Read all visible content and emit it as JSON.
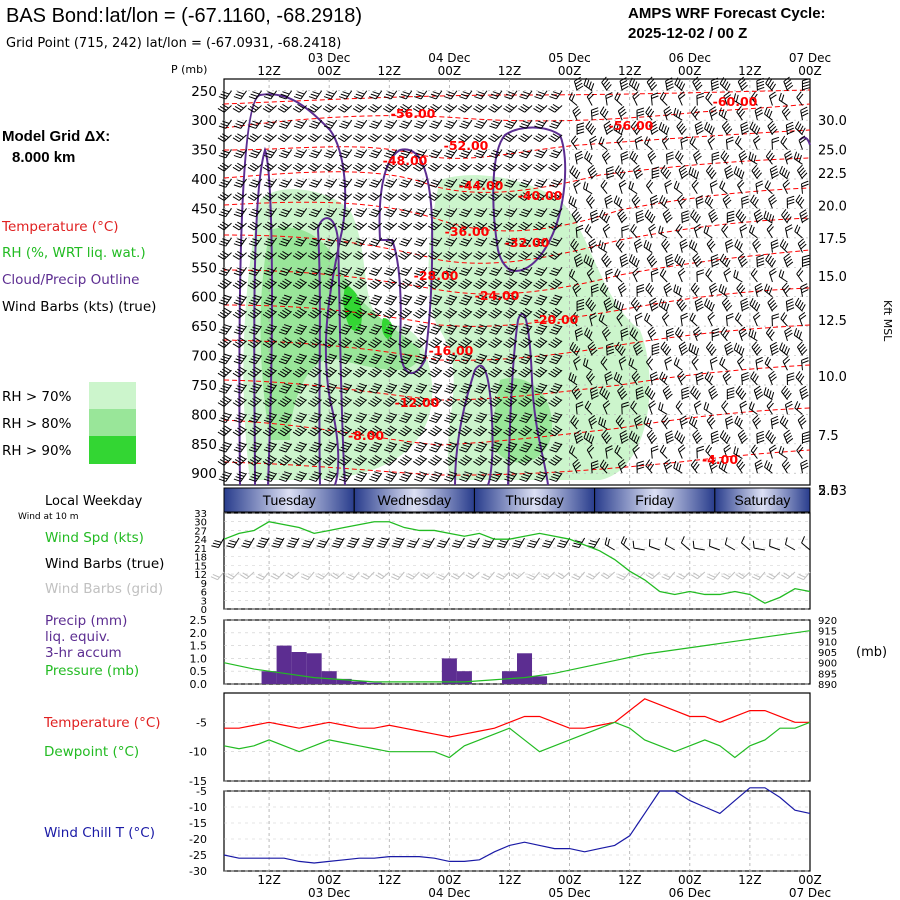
{
  "header": {
    "station": "BAS Bond:",
    "latlon": "lat/lon = (-67.1160, -68.2918)",
    "grid_point": "Grid Point (715, 242) lat/lon = (-67.0931, -68.2418)",
    "cycle_title": "AMPS WRF Forecast Cycle:",
    "cycle_time": "2025-12-02 / 00  Z"
  },
  "legend": {
    "model_grid": "Model Grid ΔX:",
    "grid_km": "8.000 km",
    "temperature": "Temperature (°C)",
    "rh": "RH (%, WRT liq. wat.)",
    "cloud": "Cloud/Precip Outline",
    "wind": "Wind Barbs (kts) (true)",
    "rh70": "RH > 70%",
    "rh80": "RH > 80%",
    "rh90": "RH > 90%"
  },
  "colors": {
    "temp": "#ff0000",
    "rh70": "#ccf5cc",
    "rh80": "#99e699",
    "rh90": "#33d633",
    "cloud": "#5c2d91",
    "wind_spd": "#22bb22",
    "precip": "#5c2d91",
    "pressure": "#22bb22",
    "dewpoint": "#22bb22",
    "windchill": "#1a1aa6",
    "grid_barb": "#c0c0c0",
    "day_dark": "#283c8c",
    "day_light": "#dce0f4"
  },
  "time_axis": {
    "hours": [
      "12Z",
      "00Z",
      "12Z",
      "00Z",
      "12Z",
      "00Z",
      "12Z",
      "00Z",
      "12Z",
      "00Z"
    ],
    "hour_offsets": [
      12,
      24,
      36,
      48,
      60,
      72,
      84,
      96,
      108,
      120
    ],
    "dates": [
      {
        "label": "03 Dec",
        "offset": 24
      },
      {
        "label": "04 Dec",
        "offset": 48
      },
      {
        "label": "05 Dec",
        "offset": 72
      },
      {
        "label": "06 Dec",
        "offset": 96
      },
      {
        "label": "07 Dec",
        "offset": 120
      }
    ],
    "range_hours": [
      3,
      120
    ]
  },
  "weekday": {
    "title": "Local Weekday",
    "subtitle": "Wind at 10 m",
    "days": [
      {
        "name": "Tuesday",
        "start": 3,
        "end": 29
      },
      {
        "name": "Wednesday",
        "start": 29,
        "end": 53
      },
      {
        "name": "Thursday",
        "start": 53,
        "end": 77
      },
      {
        "name": "Friday",
        "start": 77,
        "end": 101
      },
      {
        "name": "Saturday",
        "start": 101,
        "end": 120
      }
    ]
  },
  "panel_labels": {
    "pres_axis": "P (mb)",
    "height_axis": "Kft MSL",
    "wind_spd": "Wind Spd (kts)",
    "wind_true": "Wind Barbs (true)",
    "wind_grid": "Wind Barbs (grid)",
    "precip1": "Precip (mm)",
    "precip2": "liq. equiv.",
    "precip3": "3-hr accum",
    "pressure": "Pressure (mb)",
    "pressure_unit": "(mb)",
    "temperature": "Temperature (°C)",
    "dewpoint": "Dewpoint (°C)",
    "windchill": "Wind Chill T (°C)"
  },
  "chart_data": [
    {
      "type": "heatmap",
      "title": "Time-height cross section",
      "y_pressure_mb": [
        250,
        300,
        350,
        400,
        450,
        500,
        550,
        600,
        650,
        700,
        750,
        800,
        850,
        900
      ],
      "y_height_kft": [
        "30.0",
        "25.0",
        "22.5",
        "20.0",
        "17.5",
        "15.0",
        "12.5",
        "10.0",
        "7.5",
        "5.0",
        "2.53"
      ],
      "y_height_pressure_mb": [
        300,
        350,
        390,
        445,
        500,
        565,
        640,
        735,
        835,
        950,
        1038
      ],
      "temperature_contour_labels": [
        "-60.00",
        "-56.00",
        "-56.00",
        "-52.00",
        "-48.00",
        "-44.00",
        "-40.00",
        "-36.00",
        "-32.00",
        "-28.00",
        "-24.00",
        "-20.00",
        "-16.00",
        "-12.00",
        "-8.00",
        "-4.00"
      ]
    },
    {
      "type": "line",
      "title": "Wind Spd (kts)",
      "x": [
        3,
        6,
        9,
        12,
        15,
        18,
        21,
        24,
        27,
        30,
        33,
        36,
        39,
        42,
        45,
        48,
        51,
        54,
        57,
        60,
        63,
        66,
        69,
        72,
        75,
        78,
        81,
        84,
        87,
        90,
        93,
        96,
        99,
        102,
        105,
        108,
        111,
        114,
        117,
        120
      ],
      "values": [
        24,
        26,
        27,
        30,
        29,
        28,
        26,
        27,
        28,
        29,
        30,
        30,
        28,
        27,
        27,
        26,
        25,
        26,
        24,
        24,
        25,
        26,
        25,
        24,
        22,
        20,
        17,
        13,
        10,
        6,
        5,
        6,
        5,
        5,
        6,
        5,
        2,
        4,
        7,
        6
      ],
      "ylim": [
        0,
        33
      ],
      "yticks": [
        0,
        3,
        6,
        9,
        12,
        15,
        18,
        21,
        24,
        27,
        30,
        33
      ]
    },
    {
      "type": "bar",
      "title": "Precip (mm) 3-hr accum",
      "x": [
        12,
        15,
        18,
        21,
        24,
        27,
        30,
        33,
        48,
        51,
        60,
        63,
        66
      ],
      "values": [
        0.5,
        1.5,
        1.25,
        1.2,
        0.5,
        0.2,
        0.1,
        0.05,
        1.0,
        0.5,
        0.5,
        1.2,
        0.3
      ],
      "ylim": [
        0,
        2.5
      ],
      "yticks": [
        "0.0",
        "0.5",
        "1.0",
        "1.5",
        "2.0",
        "2.5"
      ]
    },
    {
      "type": "line",
      "title": "Pressure (mb)",
      "x": [
        3,
        9,
        15,
        21,
        27,
        33,
        39,
        45,
        51,
        57,
        63,
        69,
        75,
        81,
        87,
        93,
        99,
        105,
        111,
        117,
        120
      ],
      "values": [
        900,
        897,
        895,
        893,
        892,
        891,
        891,
        891,
        891,
        892,
        893,
        895,
        898,
        901,
        904,
        906,
        908,
        910,
        912,
        914,
        915
      ],
      "ylim": [
        890,
        920
      ],
      "yticks": [
        890,
        895,
        900,
        905,
        910,
        915,
        920
      ]
    },
    {
      "type": "line",
      "title": "Temperature / Dewpoint (°C)",
      "x": [
        3,
        6,
        9,
        12,
        15,
        18,
        21,
        24,
        27,
        30,
        33,
        36,
        39,
        42,
        45,
        48,
        51,
        54,
        57,
        60,
        63,
        66,
        69,
        72,
        75,
        78,
        81,
        84,
        87,
        90,
        93,
        96,
        99,
        102,
        105,
        108,
        111,
        114,
        117,
        120
      ],
      "series": [
        {
          "name": "Temperature",
          "values": [
            -6,
            -6,
            -5.5,
            -5,
            -5.5,
            -6,
            -5.5,
            -5,
            -5.5,
            -6,
            -6,
            -5.5,
            -6,
            -6.5,
            -7,
            -7.5,
            -7,
            -6.5,
            -6,
            -5,
            -4,
            -4,
            -5,
            -6,
            -6,
            -5.5,
            -5,
            -3,
            -1,
            -2,
            -3,
            -4,
            -4,
            -5,
            -4,
            -3,
            -3,
            -4,
            -5,
            -5
          ]
        },
        {
          "name": "Dewpoint",
          "values": [
            -9,
            -9.5,
            -9,
            -8,
            -9,
            -10,
            -9,
            -8,
            -8.5,
            -9,
            -9.5,
            -10,
            -10,
            -10,
            -10,
            -11,
            -9,
            -8,
            -7,
            -6,
            -8,
            -10,
            -9,
            -8,
            -7,
            -6,
            -5,
            -6,
            -8,
            -9,
            -10,
            -9,
            -8,
            -9,
            -11,
            -9,
            -8,
            -6,
            -6,
            -5
          ]
        }
      ],
      "ylim": [
        -15,
        0
      ],
      "yticks": [
        -15,
        -10,
        -5
      ]
    },
    {
      "type": "line",
      "title": "Wind Chill T (°C)",
      "x": [
        3,
        6,
        9,
        12,
        15,
        18,
        21,
        24,
        27,
        30,
        33,
        36,
        39,
        42,
        45,
        48,
        51,
        54,
        57,
        60,
        63,
        66,
        69,
        72,
        75,
        78,
        81,
        84,
        87,
        90,
        93,
        96,
        99,
        102,
        105,
        108,
        111,
        114,
        117,
        120
      ],
      "values": [
        -25,
        -26,
        -26,
        -26,
        -26,
        -27,
        -27.5,
        -27,
        -26.5,
        -26,
        -26,
        -25.5,
        -25.5,
        -25.5,
        -26,
        -27,
        -27,
        -26.5,
        -24,
        -22,
        -21,
        -22,
        -23,
        -23,
        -24,
        -23,
        -22,
        -19,
        -12,
        -5,
        -5,
        -8,
        -10,
        -12,
        -8,
        -4,
        -4,
        -7,
        -11,
        -12
      ],
      "ylim": [
        -30,
        -5
      ],
      "yticks": [
        -30,
        -25,
        -20,
        -15,
        -10,
        -5
      ]
    }
  ]
}
